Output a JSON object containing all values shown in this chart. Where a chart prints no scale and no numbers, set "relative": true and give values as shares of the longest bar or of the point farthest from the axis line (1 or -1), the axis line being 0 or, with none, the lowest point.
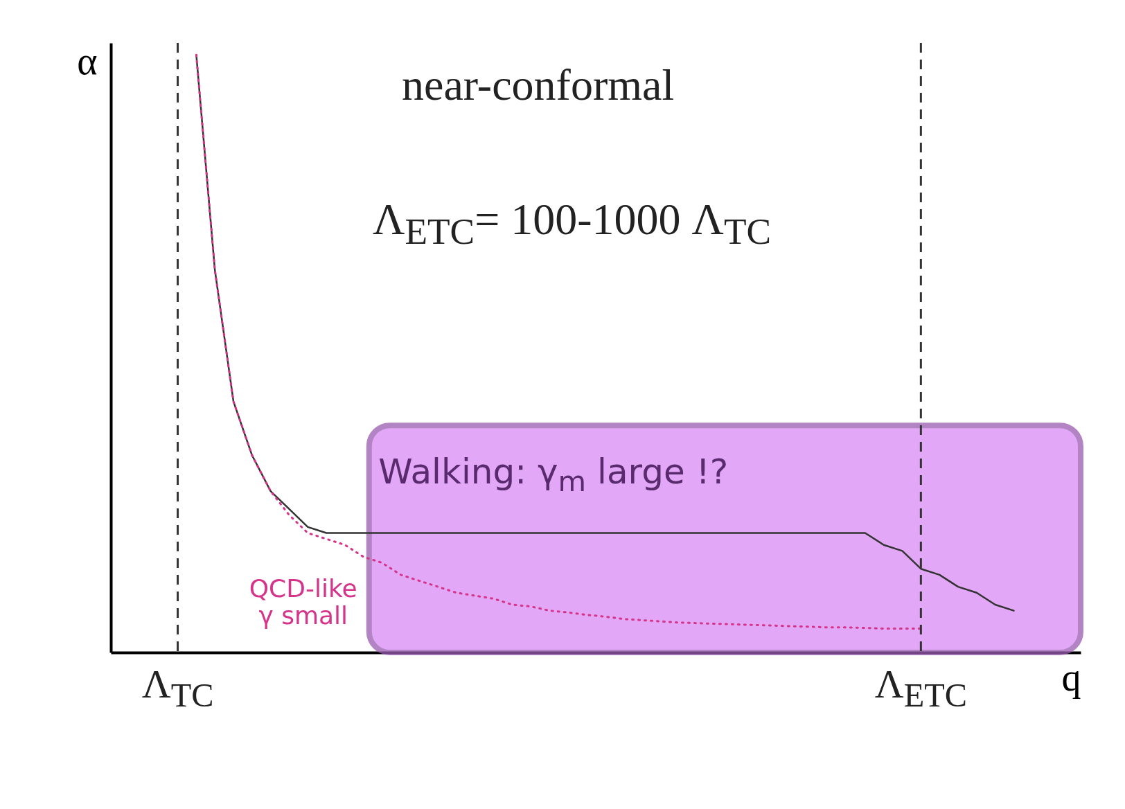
{
  "chart_data": {
    "type": "line",
    "relative": true,
    "xlabel": "q",
    "ylabel": "α",
    "categories": [
      "Λ$_{TC}$",
      null,
      null,
      null,
      null,
      null,
      null,
      null,
      null,
      null,
      null,
      null,
      null,
      null,
      null,
      null,
      null,
      null,
      null,
      null,
      null,
      null,
      null,
      null,
      null,
      null,
      null,
      null,
      null,
      null,
      null,
      null,
      null,
      null,
      null,
      null,
      null,
      null,
      null,
      null,
      "Λ$_{ETC}$",
      null,
      null,
      null,
      null,
      null
    ],
    "series": [
      {
        "color": "#333333",
        "line_style": "solid",
        "values": [
          null,
          1.0,
          0.64,
          0.42,
          0.33,
          0.27,
          0.24,
          0.21,
          0.2,
          0.2,
          0.2,
          0.2,
          0.2,
          0.2,
          0.2,
          0.2,
          0.2,
          0.2,
          0.2,
          0.2,
          0.2,
          0.2,
          0.2,
          0.2,
          0.2,
          0.2,
          0.2,
          0.2,
          0.2,
          0.2,
          0.2,
          0.2,
          0.2,
          0.2,
          0.2,
          0.2,
          0.2,
          0.2,
          0.18,
          0.17,
          0.14,
          0.13,
          0.11,
          0.1,
          0.08,
          0.07
        ]
      },
      {
        "name": "QCD-like γ small",
        "color": "#d6338a",
        "line_style": "dotted",
        "values": [
          null,
          1.0,
          0.64,
          0.42,
          0.33,
          0.27,
          0.23,
          0.2,
          0.19,
          0.18,
          0.16,
          0.15,
          0.13,
          0.12,
          0.11,
          0.1,
          0.095,
          0.09,
          0.08,
          0.077,
          0.07,
          0.067,
          0.063,
          0.06,
          0.056,
          0.054,
          0.052,
          0.05,
          0.049,
          0.048,
          0.047,
          0.046,
          0.045,
          0.044,
          0.043,
          0.042,
          0.042,
          0.041,
          0.04,
          0.04,
          0.04,
          null,
          null,
          null,
          null,
          null
        ]
      }
    ],
    "ref_lines": [
      {
        "axis": "x",
        "value": "Λ$_{TC}$",
        "line_style": "dashed",
        "color": "#333333"
      },
      {
        "axis": "x",
        "value": "Λ$_{ETC}$",
        "line_style": "dashed",
        "color": "#333333"
      }
    ],
    "bands": [
      {
        "axis": "y",
        "from": 0,
        "to": 0.38,
        "label": "Walking: γ$_{m}$ large !?",
        "color": "#d98cf5"
      }
    ],
    "annotations": [
      "near-conformal",
      "Λ$_{ETC}$= 100-1000 Λ$_{TC}$"
    ]
  }
}
